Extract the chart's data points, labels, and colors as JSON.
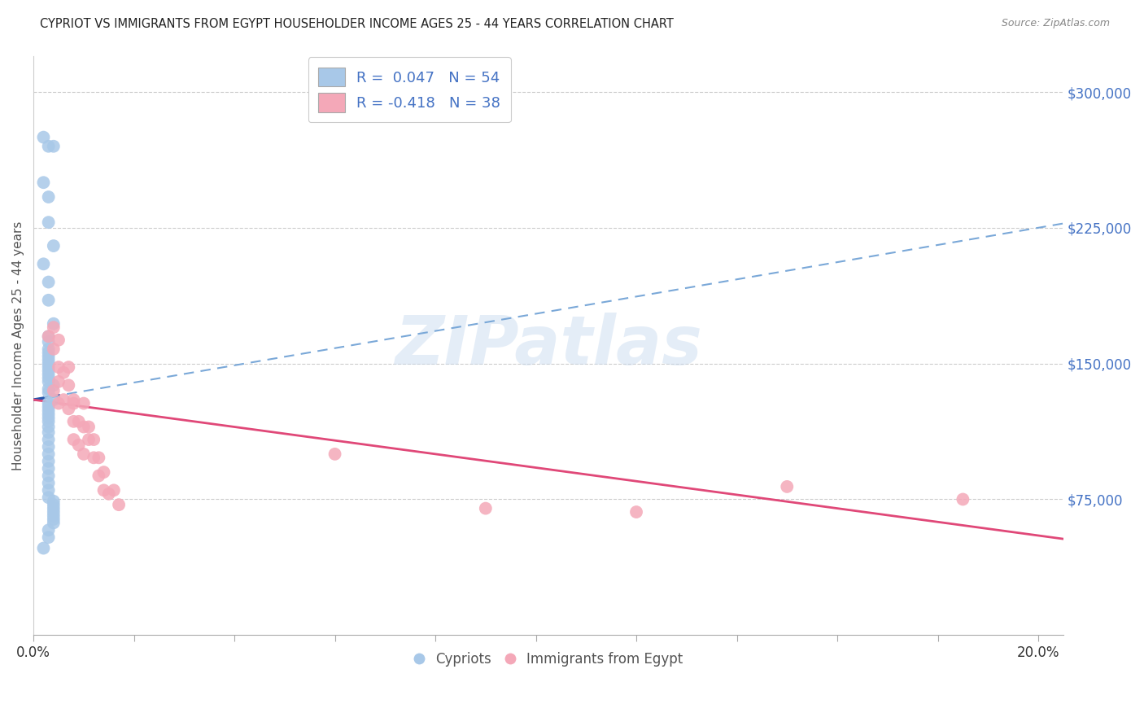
{
  "title": "CYPRIOT VS IMMIGRANTS FROM EGYPT HOUSEHOLDER INCOME AGES 25 - 44 YEARS CORRELATION CHART",
  "source": "Source: ZipAtlas.com",
  "ylabel": "Householder Income Ages 25 - 44 years",
  "yticks": [
    75000,
    150000,
    225000,
    300000
  ],
  "ytick_labels": [
    "$75,000",
    "$150,000",
    "$225,000",
    "$300,000"
  ],
  "xlim": [
    0.0,
    0.205
  ],
  "ylim": [
    0,
    320000
  ],
  "xtick_positions": [
    0.0,
    0.02,
    0.04,
    0.06,
    0.08,
    0.1,
    0.12,
    0.14,
    0.16,
    0.18,
    0.2
  ],
  "legend1_label": "R =  0.047   N = 54",
  "legend2_label": "R = -0.418   N = 38",
  "legend_bottom_label1": "Cypriots",
  "legend_bottom_label2": "Immigrants from Egypt",
  "cypriot_color": "#a8c8e8",
  "egypt_color": "#f4a8b8",
  "cypriot_line_color": "#2255aa",
  "egypt_line_color": "#e04878",
  "cypriot_dash_color": "#7aa8d8",
  "cypriot_x": [
    0.002,
    0.003,
    0.004,
    0.002,
    0.003,
    0.003,
    0.004,
    0.002,
    0.003,
    0.003,
    0.004,
    0.003,
    0.003,
    0.003,
    0.003,
    0.003,
    0.003,
    0.003,
    0.003,
    0.003,
    0.003,
    0.003,
    0.003,
    0.004,
    0.003,
    0.003,
    0.004,
    0.003,
    0.003,
    0.003,
    0.003,
    0.003,
    0.003,
    0.003,
    0.003,
    0.003,
    0.003,
    0.003,
    0.003,
    0.003,
    0.003,
    0.003,
    0.003,
    0.003,
    0.004,
    0.004,
    0.004,
    0.004,
    0.004,
    0.004,
    0.004,
    0.003,
    0.003,
    0.002
  ],
  "cypriot_y": [
    275000,
    270000,
    270000,
    250000,
    242000,
    228000,
    215000,
    205000,
    195000,
    185000,
    172000,
    165000,
    162000,
    158000,
    156000,
    154000,
    152000,
    150000,
    148000,
    146000,
    144000,
    142000,
    140000,
    138000,
    136000,
    134000,
    130000,
    128000,
    126000,
    124000,
    122000,
    120000,
    118000,
    115000,
    112000,
    108000,
    104000,
    100000,
    96000,
    92000,
    88000,
    84000,
    80000,
    76000,
    74000,
    72000,
    70000,
    68000,
    66000,
    64000,
    62000,
    58000,
    54000,
    48000
  ],
  "egypt_x": [
    0.003,
    0.004,
    0.004,
    0.004,
    0.005,
    0.005,
    0.005,
    0.005,
    0.006,
    0.006,
    0.007,
    0.007,
    0.007,
    0.008,
    0.008,
    0.008,
    0.008,
    0.009,
    0.009,
    0.01,
    0.01,
    0.01,
    0.011,
    0.011,
    0.012,
    0.012,
    0.013,
    0.013,
    0.014,
    0.014,
    0.015,
    0.016,
    0.017,
    0.06,
    0.09,
    0.12,
    0.15,
    0.185
  ],
  "egypt_y": [
    165000,
    170000,
    158000,
    135000,
    163000,
    148000,
    140000,
    128000,
    145000,
    130000,
    148000,
    138000,
    125000,
    130000,
    128000,
    118000,
    108000,
    118000,
    105000,
    128000,
    115000,
    100000,
    115000,
    108000,
    108000,
    98000,
    98000,
    88000,
    90000,
    80000,
    78000,
    80000,
    72000,
    100000,
    70000,
    68000,
    82000,
    75000
  ]
}
